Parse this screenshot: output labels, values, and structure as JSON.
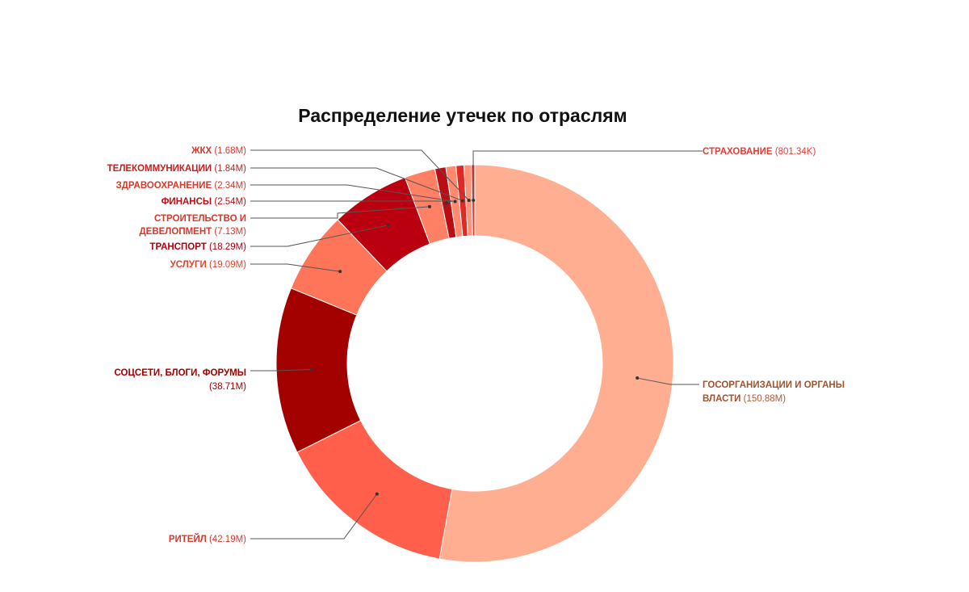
{
  "chart_data": {
    "type": "pie",
    "variant": "donut",
    "title": "Распределение утечек по отраслям",
    "slices": [
      {
        "name": "ГОСОРГАНИЗАЦИИ И ОРГАНЫ ВЛАСТИ",
        "value": 150.88,
        "value_label": "(150.88M)",
        "color": "#FFAE91"
      },
      {
        "name": "РИТЕЙЛ",
        "value": 42.19,
        "value_label": "(42.19M)",
        "color": "#FF5F4B"
      },
      {
        "name": "СОЦСЕТИ, БЛОГИ, ФОРУМЫ",
        "value": 38.71,
        "value_label": "(38.71M)",
        "color": "#A30000"
      },
      {
        "name": "УСЛУГИ",
        "value": 19.09,
        "value_label": "(19.09M)",
        "color": "#FF7559"
      },
      {
        "name": "ТРАНСПОРТ",
        "value": 18.29,
        "value_label": "(18.29M)",
        "color": "#BA0010"
      },
      {
        "name": "СТРОИТЕЛЬСТВО И ДЕВЕЛОПМЕНТ",
        "value": 7.13,
        "value_label": "(7.13M)",
        "color": "#FF8064"
      },
      {
        "name": "ФИНАНСЫ",
        "value": 2.54,
        "value_label": "(2.54M)",
        "color": "#B80E14"
      },
      {
        "name": "ЗДРАВООХРАНЕНИЕ",
        "value": 2.34,
        "value_label": "(2.34M)",
        "color": "#FF8A70"
      },
      {
        "name": "ТЕЛЕКОММУНИКАЦИИ",
        "value": 1.84,
        "value_label": "(1.84M)",
        "color": "#DF2B26"
      },
      {
        "name": "ЖКХ",
        "value": 1.68,
        "value_label": "(1.68M)",
        "color": "#FF937A"
      },
      {
        "name": "СТРАХОВАНИЕ",
        "value": 0.80134,
        "value_label": "(801.34K)",
        "color": "#E63B32"
      }
    ],
    "start_slice": "СТРАХОВАНИЕ",
    "direction": "clockwise",
    "label_colors": {
      "ГОСОРГАНИЗАЦИИ И ОРГАНЫ ВЛАСТИ": "#A0522D",
      "РИТЕЙЛ": "#D9382A",
      "СОЦСЕТИ, БЛОГИ, ФОРУМЫ": "#A30000",
      "УСЛУГИ": "#E0442F",
      "ТРАНСПОРТ": "#B0000E",
      "СТРОИТЕЛЬСТВО И ДЕВЕЛОПМЕНТ": "#D9382A",
      "ФИНАНСЫ": "#B80E14",
      "ЗДРАВООХРАНЕНИЕ": "#D9382A",
      "ТЕЛЕКОММУНИКАЦИИ": "#C81E1E",
      "ЖКХ": "#D9382A",
      "СТРАХОВАНИЕ": "#E63B32"
    }
  }
}
